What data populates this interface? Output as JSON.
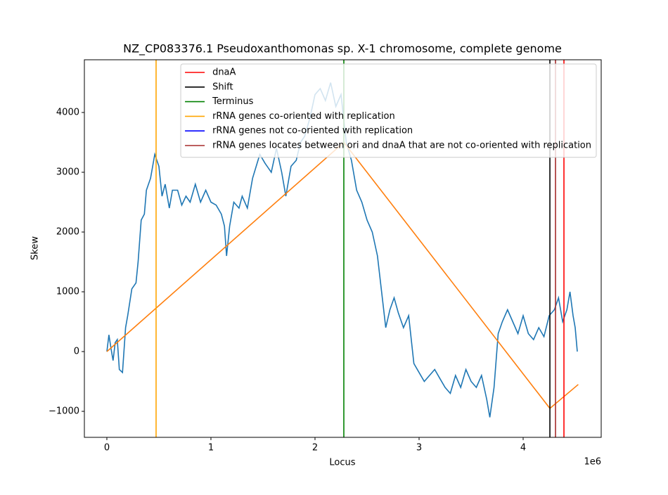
{
  "chart_data": {
    "type": "line",
    "title": "NZ_CP083376.1 Pseudoxanthomonas sp. X-1 chromosome, complete genome",
    "x_label": "Locus",
    "y_label": "Skew",
    "x_offset_label": "1e6",
    "xlim": [
      -216000,
      4750000
    ],
    "ylim": [
      -1435,
      4882
    ],
    "xticks": [
      0,
      {
        "value": 1000000,
        "label": "1"
      },
      {
        "value": 2000000,
        "label": "2"
      },
      {
        "value": 3000000,
        "label": "3"
      },
      {
        "value": 4000000,
        "label": "4"
      }
    ],
    "yticks": [
      {
        "value": -1000,
        "label": "−1000"
      },
      0,
      1000,
      2000,
      3000,
      4000
    ],
    "grid": false,
    "legend": "upper right",
    "series": [
      {
        "color": "#1f77b4",
        "x": [
          0,
          20000,
          40000,
          60000,
          80000,
          100000,
          120000,
          150000,
          180000,
          200000,
          240000,
          280000,
          300000,
          330000,
          360000,
          380000,
          420000,
          460000,
          500000,
          530000,
          560000,
          600000,
          630000,
          680000,
          720000,
          760000,
          800000,
          850000,
          900000,
          950000,
          1000000,
          1050000,
          1100000,
          1130000,
          1150000,
          1180000,
          1220000,
          1270000,
          1300000,
          1350000,
          1400000,
          1470000,
          1520000,
          1580000,
          1630000,
          1680000,
          1720000,
          1770000,
          1820000,
          1860000,
          1900000,
          1950000,
          2000000,
          2050000,
          2100000,
          2150000,
          2200000,
          2250000,
          2300000,
          2350000,
          2400000,
          2450000,
          2500000,
          2550000,
          2600000,
          2640000,
          2680000,
          2720000,
          2760000,
          2800000,
          2850000,
          2900000,
          2950000,
          3000000,
          3050000,
          3100000,
          3150000,
          3200000,
          3250000,
          3300000,
          3350000,
          3400000,
          3450000,
          3500000,
          3550000,
          3600000,
          3650000,
          3680000,
          3720000,
          3760000,
          3800000,
          3850000,
          3900000,
          3950000,
          4000000,
          4050000,
          4100000,
          4150000,
          4200000,
          4250000,
          4300000,
          4340000,
          4380000,
          4420000,
          4450000,
          4480000,
          4500000,
          4520000
        ],
        "values": [
          0,
          280,
          50,
          -150,
          150,
          200,
          -300,
          -350,
          400,
          600,
          1050,
          1150,
          1500,
          2200,
          2300,
          2700,
          2900,
          3300,
          3100,
          2600,
          2800,
          2400,
          2700,
          2700,
          2450,
          2600,
          2500,
          2800,
          2500,
          2700,
          2500,
          2450,
          2300,
          2100,
          1600,
          2100,
          2500,
          2400,
          2600,
          2400,
          2900,
          3300,
          3150,
          3000,
          3400,
          3000,
          2600,
          3100,
          3200,
          3500,
          3600,
          3900,
          4300,
          4400,
          4200,
          4500,
          4100,
          4300,
          3500,
          3200,
          2700,
          2500,
          2200,
          2000,
          1600,
          1000,
          400,
          700,
          900,
          650,
          400,
          600,
          -200,
          -350,
          -500,
          -400,
          -300,
          -450,
          -600,
          -700,
          -400,
          -600,
          -300,
          -500,
          -600,
          -400,
          -800,
          -1100,
          -600,
          300,
          500,
          700,
          500,
          300,
          600,
          300,
          200,
          400,
          250,
          600,
          700,
          900,
          500,
          700,
          1000,
          600,
          400,
          0
        ]
      },
      {
        "color": "#ff7f0e",
        "x": [
          0,
          2277000,
          4257000,
          4530000
        ],
        "values": [
          0,
          3500,
          -950,
          -550
        ]
      }
    ],
    "markers": [
      {
        "name": "dnaA",
        "color": "red",
        "x": [
          4392000
        ]
      },
      {
        "name": "Shift",
        "color": "black",
        "x": [
          4257000
        ]
      },
      {
        "name": "Terminus",
        "color": "green",
        "x": [
          2277000
        ]
      },
      {
        "name": "rRNA genes co-oriented with replication",
        "color": "orange",
        "x": [
          473000
        ]
      },
      {
        "name": "rRNA genes not co-oriented with replication",
        "color": "blue",
        "x": []
      },
      {
        "name": "rRNA genes locates between ori and dnaA that are not co-oriented with replication",
        "color": "brown",
        "x": [
          4311000
        ]
      }
    ]
  }
}
